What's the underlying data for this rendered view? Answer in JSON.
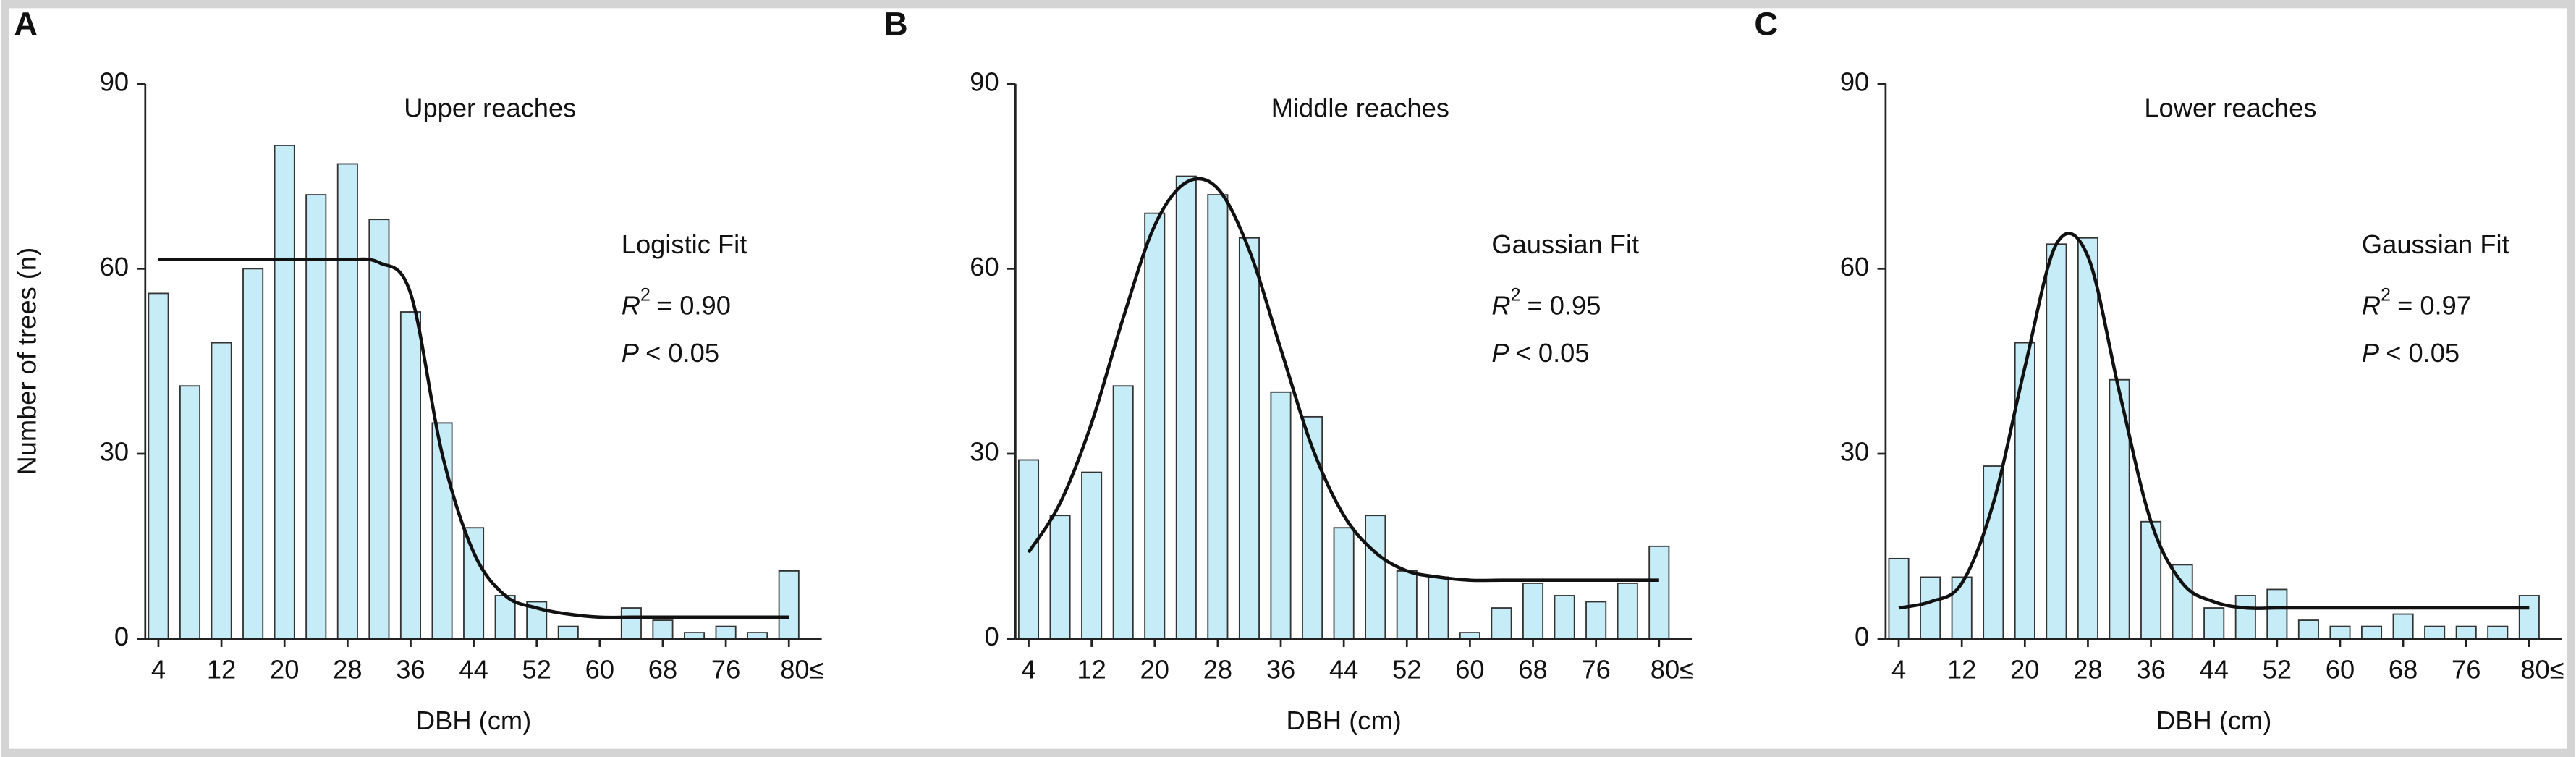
{
  "chart_data": [
    {
      "type": "bar",
      "label": "A",
      "title": "Upper reaches",
      "x_label": "DBH (cm)",
      "y_label": "Number of trees (n)",
      "categories": [
        "4",
        null,
        "12",
        null,
        "20",
        null,
        "28",
        null,
        "36",
        null,
        "44",
        null,
        "52",
        null,
        "60",
        null,
        "68",
        null,
        "76",
        null,
        "80≤"
      ],
      "values": [
        56,
        41,
        48,
        60,
        80,
        72,
        77,
        68,
        53,
        35,
        18,
        7,
        6,
        2,
        0,
        5,
        3,
        1,
        2,
        1,
        11
      ],
      "fit": [
        61.5,
        61.5,
        61.5,
        61.5,
        61.5,
        61.5,
        61.5,
        61,
        56,
        30,
        14,
        7,
        5,
        4,
        3.5,
        3.5,
        3.5,
        3.5,
        3.5,
        3.5,
        3.5
      ],
      "fit_name": "Logistic Fit",
      "r2": {
        "symbol": "R",
        "sup": "2",
        "text": "= 0.90"
      },
      "p": {
        "symbol": "P",
        "text": "< 0.05"
      },
      "color": "#c6ecf7",
      "ylim": [
        0,
        90
      ],
      "yticks": [
        0,
        30,
        60,
        90
      ]
    },
    {
      "type": "bar",
      "label": "B",
      "title": "Middle reaches",
      "x_label": "DBH (cm)",
      "categories": [
        "4",
        null,
        "12",
        null,
        "20",
        null,
        "28",
        null,
        "36",
        null,
        "44",
        null,
        "52",
        null,
        "60",
        null,
        "68",
        null,
        "76",
        null,
        "80≤"
      ],
      "values": [
        29,
        20,
        27,
        41,
        69,
        75,
        72,
        65,
        40,
        36,
        18,
        20,
        11,
        10,
        1,
        5,
        9,
        7,
        6,
        9,
        15
      ],
      "fit": [
        14,
        22,
        35,
        52,
        67,
        74,
        73,
        63,
        47,
        31,
        20,
        14,
        11,
        10,
        9.5,
        9.5,
        9.5,
        9.5,
        9.5,
        9.5,
        9.5
      ],
      "fit_name": "Gaussian Fit",
      "r2": {
        "symbol": "R",
        "sup": "2",
        "text": "= 0.95"
      },
      "p": {
        "symbol": "P",
        "text": "< 0.05"
      },
      "color": "#c6ecf7",
      "ylim": [
        0,
        90
      ],
      "yticks": [
        0,
        30,
        60,
        90
      ]
    },
    {
      "type": "bar",
      "label": "C",
      "title": "Lower reaches",
      "x_label": "DBH (cm)",
      "categories": [
        "4",
        null,
        "12",
        null,
        "20",
        null,
        "28",
        null,
        "36",
        null,
        "44",
        null,
        "52",
        null,
        "60",
        null,
        "68",
        null,
        "76",
        null,
        "80≤"
      ],
      "values": [
        13,
        10,
        10,
        28,
        48,
        64,
        65,
        42,
        19,
        12,
        5,
        7,
        8,
        3,
        2,
        2,
        4,
        2,
        2,
        2,
        7
      ],
      "fit": [
        5,
        6,
        9,
        22,
        44,
        64,
        62,
        40,
        19,
        9,
        6,
        5,
        5,
        5,
        5,
        5,
        5,
        5,
        5,
        5,
        5
      ],
      "fit_name": "Gaussian Fit",
      "r2": {
        "symbol": "R",
        "sup": "2",
        "text": "= 0.97"
      },
      "p": {
        "symbol": "P",
        "text": "< 0.05"
      },
      "color": "#c6ecf7",
      "ylim": [
        0,
        90
      ],
      "yticks": [
        0,
        30,
        60,
        90
      ]
    }
  ]
}
